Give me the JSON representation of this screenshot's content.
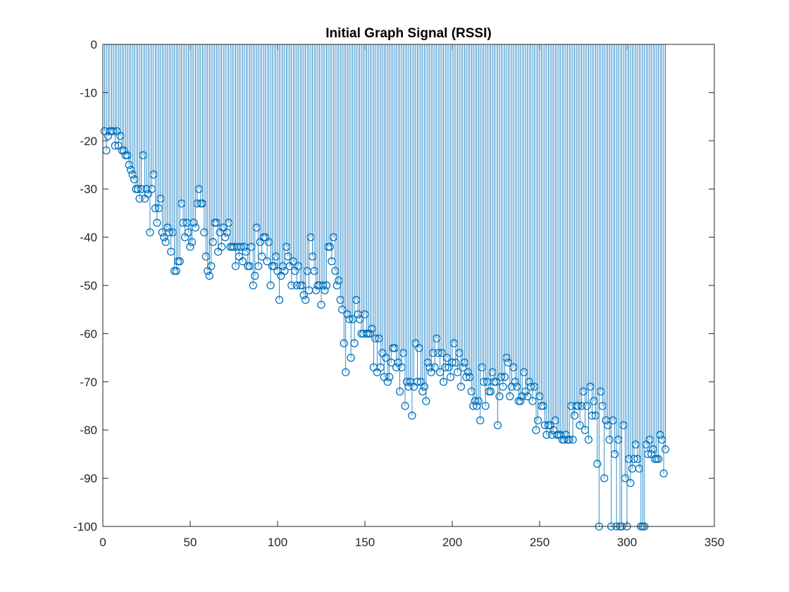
{
  "chart_data": {
    "type": "stem",
    "title": "Initial Graph Signal (RSSI)",
    "xlabel": "",
    "ylabel": "",
    "xlim": [
      0,
      350
    ],
    "ylim": [
      -100,
      0
    ],
    "xticks": [
      0,
      50,
      100,
      150,
      200,
      250,
      300,
      350
    ],
    "yticks": [
      0,
      -10,
      -20,
      -30,
      -40,
      -50,
      -60,
      -70,
      -80,
      -90,
      -100
    ],
    "xtick_labels": [
      "0",
      "50",
      "100",
      "150",
      "200",
      "250",
      "300",
      "350"
    ],
    "ytick_labels": [
      "0",
      "-10",
      "-20",
      "-30",
      "-40",
      "-50",
      "-60",
      "-70",
      "-80",
      "-90",
      "-100"
    ],
    "grid": false,
    "box": true,
    "baseline": 0,
    "marker": "circle",
    "color": "#0072BD",
    "x_start": 1,
    "x_step": 1,
    "values": [
      -18,
      -22,
      -19,
      -18,
      -18,
      -18,
      -21,
      -18,
      -21,
      -19,
      -22,
      -22,
      -23,
      -23,
      -25,
      -26,
      -27,
      -28,
      -30,
      -30,
      -32,
      -30,
      -23,
      -32,
      -30,
      -31,
      -39,
      -30,
      -27,
      -34,
      -37,
      -34,
      -32,
      -39,
      -40,
      -41,
      -38,
      -39,
      -43,
      -39,
      -47,
      -47,
      -45,
      -45,
      -33,
      -37,
      -40,
      -37,
      -39,
      -42,
      -41,
      -37,
      -38,
      -33,
      -30,
      -33,
      -33,
      -39,
      -44,
      -47,
      -48,
      -46,
      -41,
      -37,
      -37,
      -43,
      -39,
      -42,
      -38,
      -40,
      -39,
      -37,
      -42,
      -42,
      -42,
      -46,
      -42,
      -44,
      -42,
      -45,
      -42,
      -43,
      -46,
      -46,
      -42,
      -50,
      -48,
      -38,
      -46,
      -41,
      -44,
      -40,
      -40,
      -45,
      -41,
      -50,
      -46,
      -46,
      -44,
      -47,
      -53,
      -48,
      -46,
      -47,
      -42,
      -44,
      -46,
      -50,
      -45,
      -47,
      -50,
      -46,
      -50,
      -50,
      -52,
      -53,
      -47,
      -51,
      -40,
      -44,
      -47,
      -51,
      -50,
      -50,
      -54,
      -50,
      -51,
      -50,
      -42,
      -42,
      -45,
      -40,
      -47,
      -50,
      -49,
      -53,
      -55,
      -62,
      -68,
      -56,
      -57,
      -65,
      -57,
      -62,
      -53,
      -56,
      -57,
      -60,
      -60,
      -56,
      -60,
      -60,
      -60,
      -59,
      -67,
      -61,
      -68,
      -61,
      -67,
      -64,
      -69,
      -65,
      -70,
      -69,
      -66,
      -63,
      -63,
      -67,
      -66,
      -72,
      -67,
      -64,
      -75,
      -70,
      -71,
      -70,
      -77,
      -71,
      -62,
      -70,
      -63,
      -70,
      -72,
      -71,
      -74,
      -66,
      -67,
      -68,
      -64,
      -67,
      -61,
      -64,
      -68,
      -64,
      -70,
      -67,
      -65,
      -67,
      -69,
      -66,
      -62,
      -66,
      -68,
      -64,
      -71,
      -67,
      -66,
      -69,
      -68,
      -69,
      -72,
      -75,
      -74,
      -75,
      -74,
      -78,
      -67,
      -70,
      -75,
      -70,
      -72,
      -72,
      -68,
      -70,
      -70,
      -79,
      -73,
      -69,
      -71,
      -69,
      -65,
      -66,
      -73,
      -71,
      -67,
      -70,
      -71,
      -74,
      -74,
      -73,
      -68,
      -72,
      -73,
      -70,
      -71,
      -74,
      -71,
      -80,
      -78,
      -73,
      -75,
      -75,
      -79,
      -81,
      -79,
      -79,
      -81,
      -80,
      -78,
      -81,
      -81,
      -81,
      -82,
      -82,
      -81,
      -82,
      -82,
      -75,
      -82,
      -77,
      -75,
      -75,
      -79,
      -75,
      -72,
      -80,
      -75,
      -82,
      -71,
      -77,
      -74,
      -77,
      -87,
      -100,
      -72,
      -75,
      -90,
      -78,
      -79,
      -82,
      -100,
      -78,
      -85,
      -100,
      -82,
      -100,
      -100,
      -79,
      -90,
      -100,
      -86,
      -91,
      -88,
      -86,
      -83,
      -86,
      -88,
      -100,
      -100,
      -100,
      -83,
      -85,
      -82,
      -85,
      -84,
      -86,
      -86,
      -86,
      -81,
      -82,
      -89,
      -84
    ]
  }
}
